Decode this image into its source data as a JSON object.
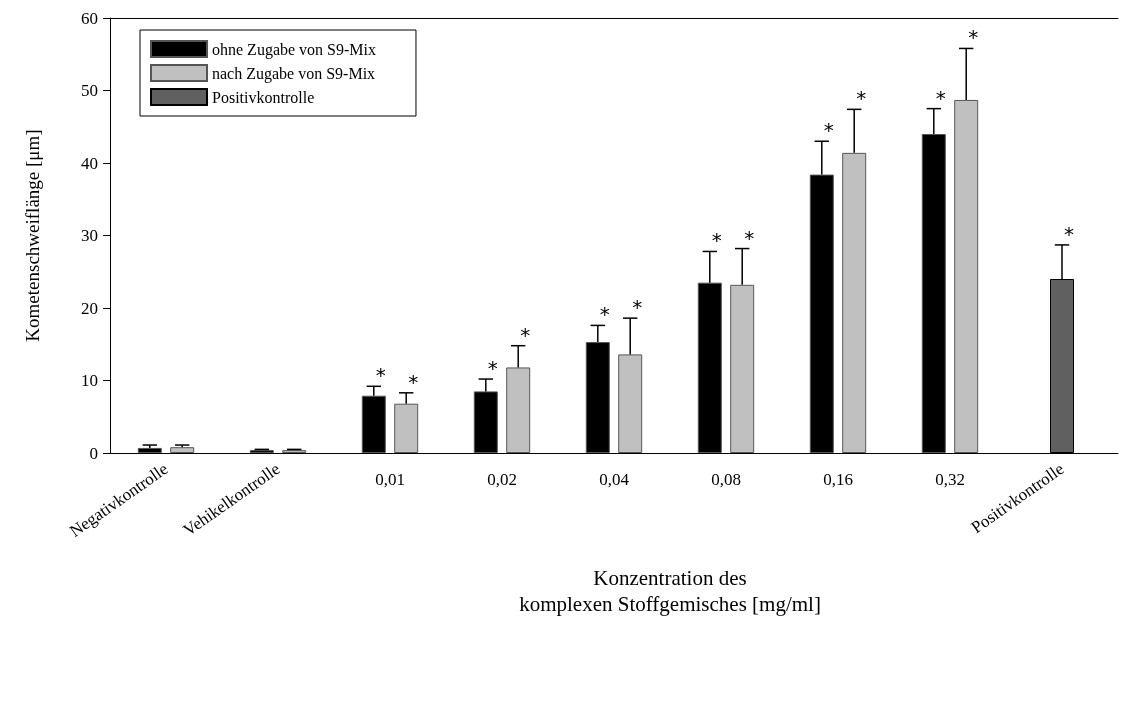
{
  "chart_data": {
    "type": "bar",
    "categories": [
      "Negativkontrolle",
      "Vehikelkontrolle",
      "0,01",
      "0,02",
      "0,04",
      "0,08",
      "0,16",
      "0,32",
      "Positivkontrolle"
    ],
    "xlabel": "Konzentration des\nkomplexen Stoffgemisches [mg/ml]",
    "ylabel": "Kometenschweiflänge [μm]",
    "series": [
      {
        "name": "ohne Zugabe von S9-Mix",
        "color": "#000000",
        "values": [
          0.7,
          0.4,
          7.9,
          8.5,
          15.3,
          23.5,
          38.4,
          44.0,
          null
        ],
        "errors": [
          [
            0.7,
            1.1
          ],
          [
            0.4,
            0.5
          ],
          [
            7.9,
            9.2
          ],
          [
            8.5,
            10.2
          ],
          [
            15.3,
            17.6
          ],
          [
            23.5,
            27.8
          ],
          [
            38.4,
            43.0
          ],
          [
            44.0,
            47.5
          ],
          null
        ]
      },
      {
        "name": "nach Zugabe von S9-Mix",
        "color": "#c0c0c0",
        "values": [
          0.8,
          0.4,
          6.8,
          11.8,
          13.6,
          23.2,
          41.4,
          48.7,
          null
        ],
        "errors": [
          [
            0.8,
            1.1
          ],
          [
            0.4,
            0.5
          ],
          [
            6.8,
            8.3
          ],
          [
            11.8,
            14.8
          ],
          [
            13.6,
            18.6
          ],
          [
            23.2,
            28.2
          ],
          [
            41.4,
            47.4
          ],
          [
            48.7,
            55.8
          ],
          null
        ]
      },
      {
        "name": "Positivkontrolle",
        "color": "#606060",
        "values": [
          null,
          null,
          null,
          null,
          null,
          null,
          null,
          null,
          24.0
        ],
        "errors": [
          null,
          null,
          null,
          null,
          null,
          null,
          null,
          null,
          [
            24.0,
            28.7
          ]
        ]
      }
    ],
    "annotations": [
      {
        "text": "*",
        "x": "0,01",
        "y": 7.9
      },
      {
        "text": "*",
        "x": "0,01",
        "y": 6.8
      },
      {
        "text": "*",
        "x": "0,02",
        "y": 8.5
      },
      {
        "text": "*",
        "x": "0,02",
        "y": 11.8
      },
      {
        "text": "*",
        "x": "0,04",
        "y": 15.3
      },
      {
        "text": "*",
        "x": "0,04",
        "y": 13.6
      },
      {
        "text": "*",
        "x": "0,08",
        "y": 23.5
      },
      {
        "text": "*",
        "x": "0,08",
        "y": 23.2
      },
      {
        "text": "*",
        "x": "0,16",
        "y": 38.4
      },
      {
        "text": "*",
        "x": "0,16",
        "y": 41.4
      },
      {
        "text": "*",
        "x": "0,32",
        "y": 44.0
      },
      {
        "text": "*",
        "x": "0,32",
        "y": 48.7
      },
      {
        "text": "*",
        "x": "Positivkontrolle",
        "y": 24.0
      }
    ],
    "ylim": [
      0,
      60
    ],
    "yticks": [
      0,
      10,
      20,
      30,
      40,
      50,
      60
    ],
    "grid": false,
    "legend": "top left"
  }
}
